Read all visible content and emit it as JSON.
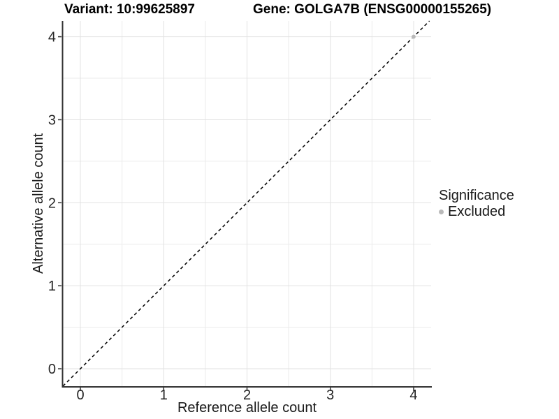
{
  "header": {
    "variant_title": "Variant: 10:99625897",
    "gene_title": "Gene: GOLGA7B (ENSG00000155265)"
  },
  "chart_data": {
    "type": "scatter",
    "title": "Variant: 10:99625897  /  Gene: GOLGA7B (ENSG00000155265)",
    "xlabel": "Reference allele count",
    "ylabel": "Alternative allele count",
    "xlim": [
      -0.21,
      4.21
    ],
    "ylim": [
      -0.21,
      4.19
    ],
    "x_ticks": [
      0,
      1,
      2,
      3,
      4
    ],
    "y_ticks": [
      0,
      1,
      2,
      3,
      4
    ],
    "grid": "on",
    "minor_grid_step": 0.5,
    "identity_line": {
      "style": "dashed",
      "color": "#000000",
      "from": [
        -0.21,
        -0.21
      ],
      "to": [
        4.19,
        4.19
      ]
    },
    "series": [
      {
        "name": "Excluded",
        "color": "#b9b9b9",
        "points": [
          [
            4,
            4
          ]
        ]
      }
    ],
    "legend": {
      "title": "Significance",
      "position": "right",
      "entries": [
        {
          "label": "Excluded",
          "color": "#b9b9b9"
        }
      ]
    },
    "colors": {
      "grid_major": "#e2e2e2",
      "grid_minor": "#ebebeb",
      "axis_line": "#333333",
      "tick_mark": "#333333",
      "tick_text": "#262626",
      "background": "#ffffff",
      "dashed_line": "#000000"
    }
  }
}
